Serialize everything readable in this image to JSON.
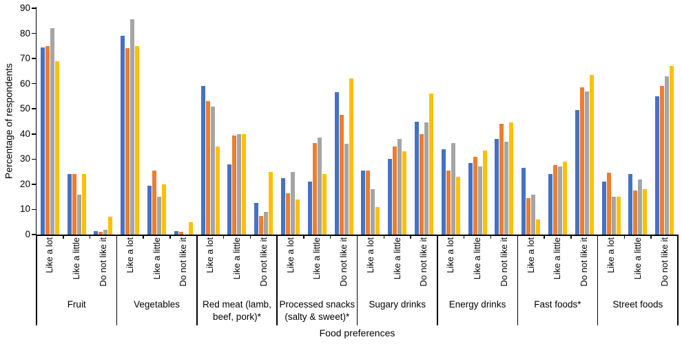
{
  "chart_data": {
    "type": "bar",
    "title": "",
    "xlabel": "Food preferences",
    "ylabel": "Percentage of respondents",
    "ylim": [
      0,
      90
    ],
    "ytick_step": 10,
    "grid": false,
    "legend_position": "none",
    "series": [
      {
        "name": "blue",
        "color": "#4472C4"
      },
      {
        "name": "orange",
        "color": "#ED7D31"
      },
      {
        "name": "gray",
        "color": "#A5A5A5"
      },
      {
        "name": "yellow",
        "color": "#FFC000"
      }
    ],
    "group_labels": [
      "Like a lot",
      "Like a little",
      "Do not like it"
    ],
    "categories": [
      {
        "label": "Fruit",
        "groups": [
          [
            74.5,
            75,
            82,
            69
          ],
          [
            24,
            24,
            16,
            24
          ],
          [
            1.5,
            1,
            2,
            7
          ]
        ]
      },
      {
        "label": "Vegetables",
        "groups": [
          [
            79,
            74,
            85.5,
            75
          ],
          [
            19.5,
            25.5,
            15,
            20
          ],
          [
            1.5,
            1,
            0,
            5
          ]
        ]
      },
      {
        "label": "Red meat (lamb,\nbeef, pork)*",
        "groups": [
          [
            59,
            53,
            51,
            35
          ],
          [
            28,
            39.5,
            40,
            40
          ],
          [
            12.5,
            7.5,
            9,
            25
          ]
        ]
      },
      {
        "label": "Processed snacks\n(salty & sweet)*",
        "groups": [
          [
            22.5,
            16.5,
            25,
            14
          ],
          [
            21,
            36.5,
            38.5,
            24
          ],
          [
            56.5,
            47.5,
            36,
            62
          ]
        ]
      },
      {
        "label": "Sugary drinks",
        "groups": [
          [
            25.5,
            25.5,
            18,
            11
          ],
          [
            30,
            35,
            38,
            33
          ],
          [
            45,
            40,
            44.5,
            56
          ]
        ]
      },
      {
        "label": "Energy drinks",
        "groups": [
          [
            34,
            25.5,
            36.5,
            23
          ],
          [
            28.5,
            31,
            27,
            33.5
          ],
          [
            38,
            44,
            37,
            44.5
          ]
        ]
      },
      {
        "label": "Fast foods*",
        "groups": [
          [
            26.5,
            14.5,
            16,
            6
          ],
          [
            24,
            27.5,
            27,
            29
          ],
          [
            49.5,
            58.5,
            57,
            63.5
          ]
        ]
      },
      {
        "label": "Street foods",
        "groups": [
          [
            21,
            24.5,
            15,
            15
          ],
          [
            24,
            17.5,
            22,
            18
          ],
          [
            55,
            59,
            63,
            67
          ]
        ]
      }
    ]
  }
}
